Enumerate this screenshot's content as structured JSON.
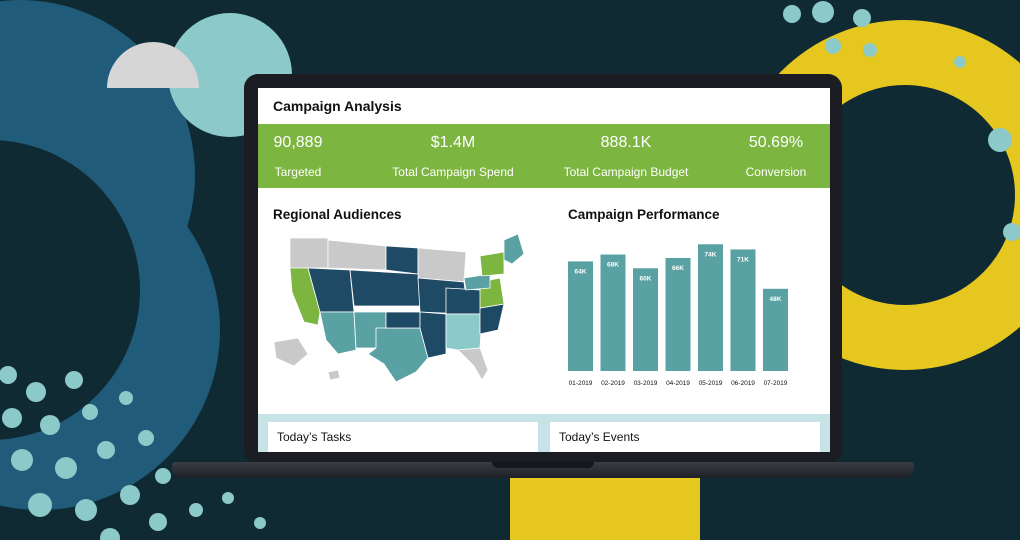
{
  "dashboard": {
    "title": "Campaign Analysis",
    "kpis": [
      {
        "value": "90,889",
        "label": "Targeted"
      },
      {
        "value": "$1.4M",
        "label": "Total Campaign Spend"
      },
      {
        "value": "888.1K",
        "label": "Total Campaign Budget"
      },
      {
        "value": "50.69%",
        "label": "Conversion"
      }
    ],
    "regional_title": "Regional Audiences",
    "performance_title": "Campaign Performance",
    "tasks_label": "Today’s Tasks",
    "events_label": "Today’s Events"
  },
  "colors": {
    "kpi_band": "#7db541",
    "bar": "#5aa1a3",
    "map_dark": "#1f4a66",
    "map_teal": "#5aa1a3",
    "map_green": "#7db541",
    "map_grey": "#c9c9c9",
    "map_light_teal": "#8cc9c9"
  },
  "chart_data": {
    "type": "bar",
    "categories": [
      "01-2019",
      "02-2019",
      "03-2019",
      "04-2019",
      "05-2019",
      "06-2019",
      "07-2019"
    ],
    "values": [
      64,
      68,
      60,
      66,
      74,
      71,
      48
    ],
    "value_labels": [
      "64K",
      "68K",
      "60K",
      "66K",
      "74K",
      "71K",
      "48K"
    ],
    "title": "Campaign Performance",
    "ylim": [
      0,
      80
    ],
    "grid": false,
    "legend": "none"
  }
}
